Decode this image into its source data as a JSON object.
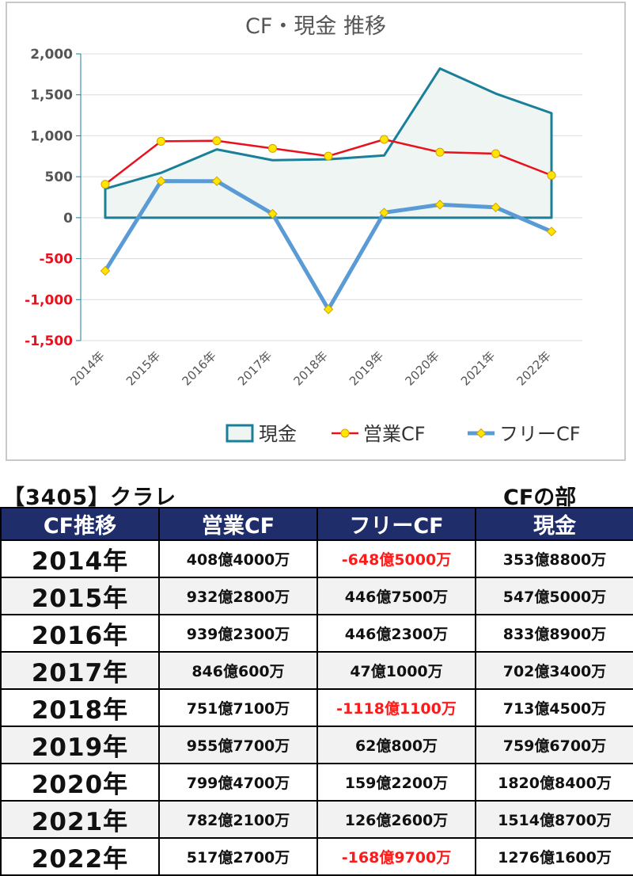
{
  "chart_data": {
    "type": "line",
    "title": "CF・現金 推移",
    "categories": [
      "2014年",
      "2015年",
      "2016年",
      "2017年",
      "2018年",
      "2019年",
      "2020年",
      "2021年",
      "2022年"
    ],
    "ylim": [
      -1500,
      2000
    ],
    "yticks": [
      {
        "value": 2000,
        "label": "2,000"
      },
      {
        "value": 1500,
        "label": "1,500"
      },
      {
        "value": 1000,
        "label": "1,000"
      },
      {
        "value": 500,
        "label": "500"
      },
      {
        "value": 0,
        "label": "0"
      },
      {
        "value": -500,
        "label": "-500"
      },
      {
        "value": -1000,
        "label": "-1,000"
      },
      {
        "value": -1500,
        "label": "-1,500"
      }
    ],
    "grid": true,
    "legend_position": "bottom-right",
    "series": [
      {
        "name": "現金",
        "style": "area",
        "color": "#1a7f99",
        "fill": "#eef5f2",
        "values": [
          353.88,
          547.5,
          833.89,
          702.34,
          713.45,
          759.67,
          1820.84,
          1514.87,
          1276.16
        ]
      },
      {
        "name": "営業CF",
        "style": "line",
        "color": "#e8111d",
        "marker_color": "#ffe600",
        "values": [
          408.4,
          932.28,
          939.23,
          846.06,
          751.71,
          955.77,
          799.47,
          782.21,
          517.27
        ]
      },
      {
        "name": "フリーCF",
        "style": "line",
        "color": "#5b9bd5",
        "marker_color": "#ffe600",
        "values": [
          -648.5,
          446.75,
          446.23,
          47.1,
          -1118.11,
          62.08,
          159.22,
          126.26,
          -168.97
        ]
      }
    ]
  },
  "heading": {
    "company": "【3405】クラレ",
    "section": "CFの部"
  },
  "table": {
    "headers": [
      "CF推移",
      "営業CF",
      "フリーCF",
      "現金"
    ],
    "rows": [
      {
        "year": "2014年",
        "op": "408億4000万",
        "free": "-648億5000万",
        "cash": "353億8800万",
        "free_negative": true
      },
      {
        "year": "2015年",
        "op": "932億2800万",
        "free": "446億7500万",
        "cash": "547億5000万",
        "free_negative": false
      },
      {
        "year": "2016年",
        "op": "939億2300万",
        "free": "446億2300万",
        "cash": "833億8900万",
        "free_negative": false
      },
      {
        "year": "2017年",
        "op": "846億600万",
        "free": "47億1000万",
        "cash": "702億3400万",
        "free_negative": false
      },
      {
        "year": "2018年",
        "op": "751億7100万",
        "free": "-1118億1100万",
        "cash": "713億4500万",
        "free_negative": true
      },
      {
        "year": "2019年",
        "op": "955億7700万",
        "free": "62億800万",
        "cash": "759億6700万",
        "free_negative": false
      },
      {
        "year": "2020年",
        "op": "799億4700万",
        "free": "159億2200万",
        "cash": "1820億8400万",
        "free_negative": false
      },
      {
        "year": "2021年",
        "op": "782億2100万",
        "free": "126億2600万",
        "cash": "1514億8700万",
        "free_negative": false
      },
      {
        "year": "2022年",
        "op": "517億2700万",
        "free": "-168億9700万",
        "cash": "1276億1600万",
        "free_negative": true
      }
    ]
  },
  "colors": {
    "negative_text": "#ff1a1a",
    "header_bg": "#1f2d6b",
    "positive_tick": "#555555",
    "negative_tick": "#e8111d"
  }
}
